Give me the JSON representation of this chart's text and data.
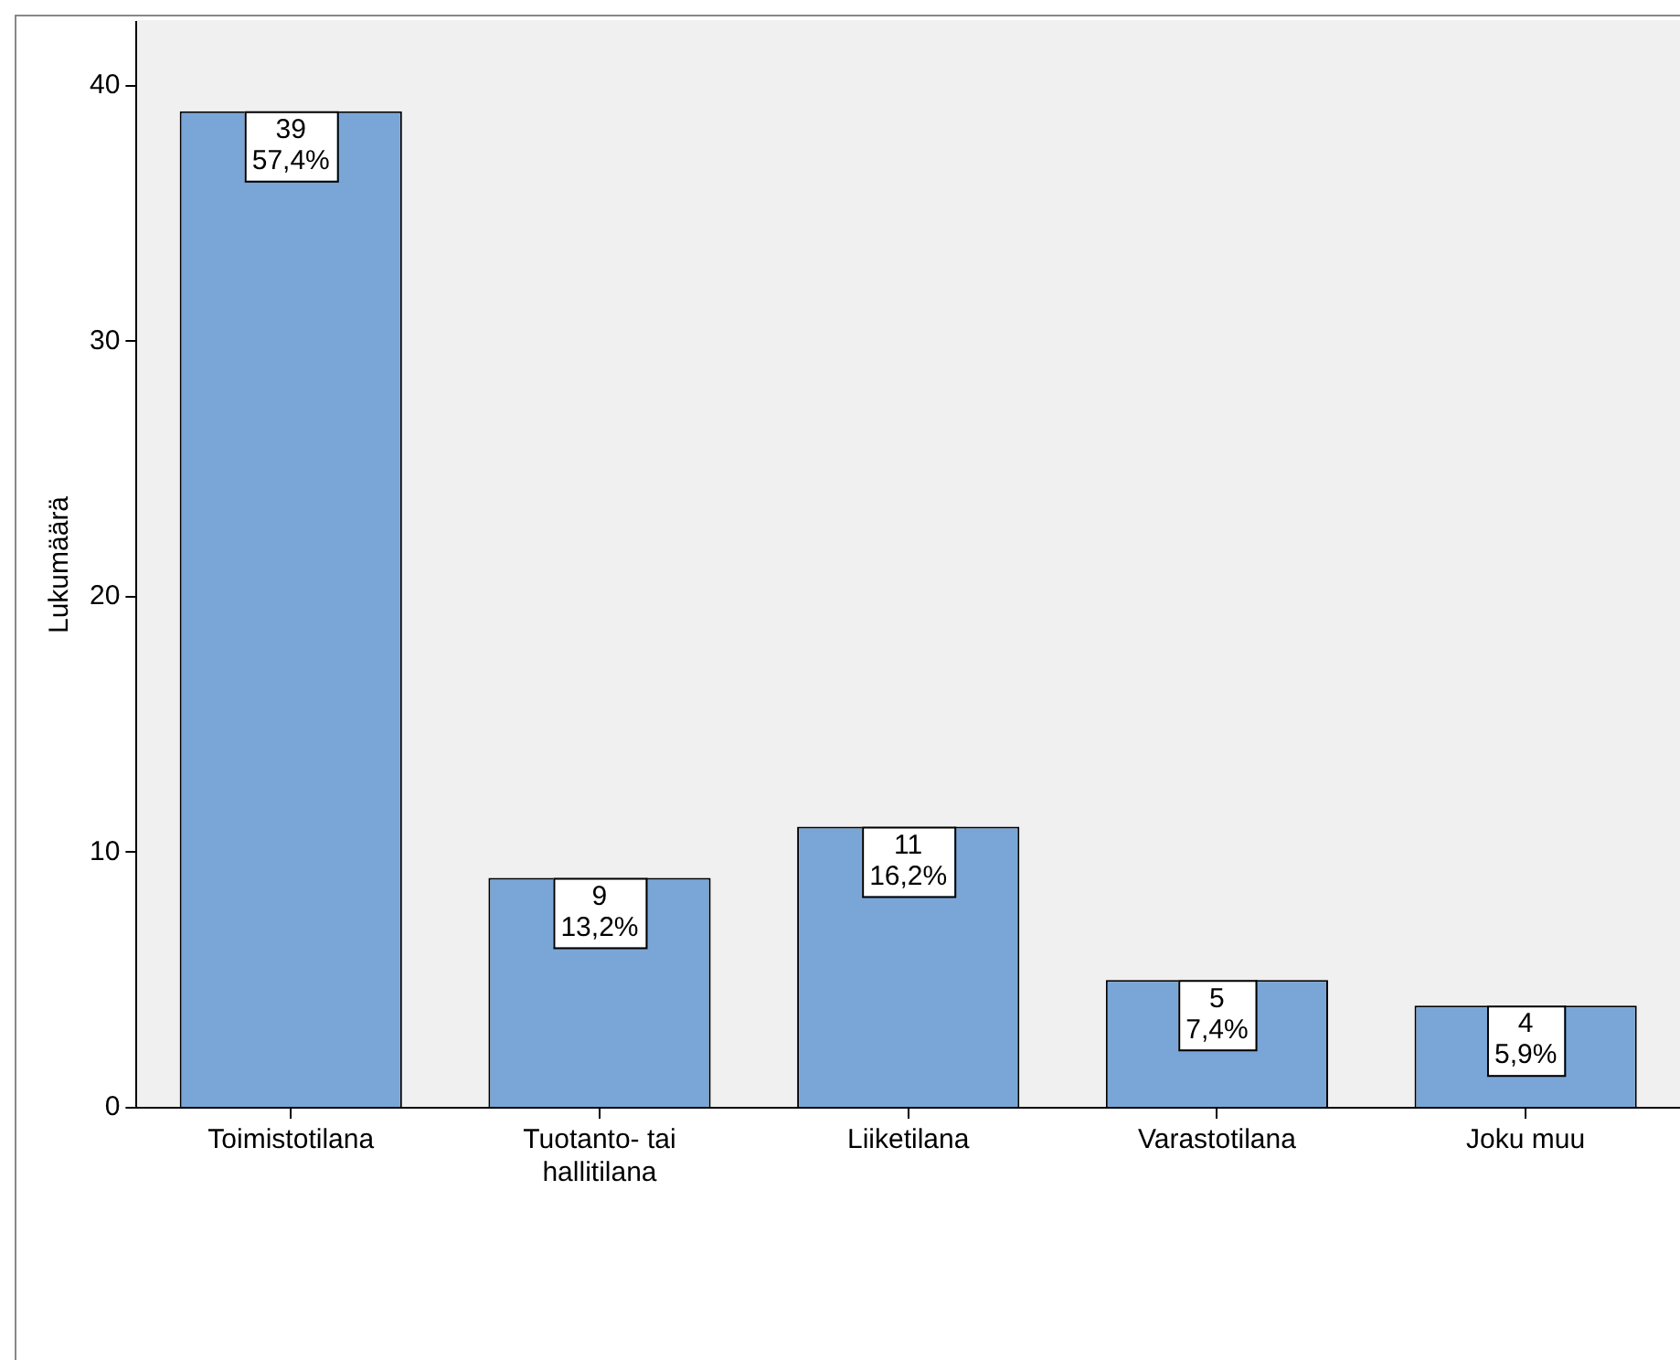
{
  "chart_data": {
    "type": "bar",
    "ylabel": "Lukumäärä",
    "categories": [
      "Toimistotilana",
      "Tuotanto- tai hallitilana",
      "Liiketilana",
      "Varastotilana",
      "Joku muu"
    ],
    "values": [
      39,
      9,
      11,
      5,
      4
    ],
    "value_labels": [
      "39\n57,4%",
      "9\n13,2%",
      "11\n16,2%",
      "5\n7,4%",
      "4\n5,9%"
    ],
    "color": "#79a6d6",
    "ylim": [
      0,
      42.5
    ],
    "yticks": [
      0,
      10,
      20,
      30,
      40
    ],
    "grid": false,
    "legend": false
  }
}
